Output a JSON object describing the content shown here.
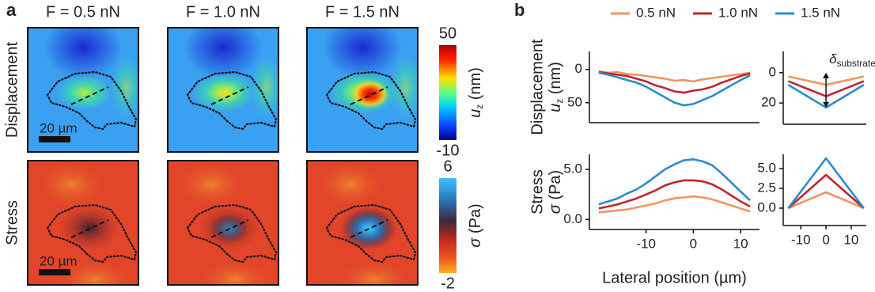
{
  "panel_labels": {
    "a": "a",
    "b": "b"
  },
  "panel_a": {
    "column_titles": [
      "F = 0.5 nN",
      "F = 1.0 nN",
      "F = 1.5 nN"
    ],
    "row_labels": [
      "Displacement",
      "Stress"
    ],
    "scale_bar": "20 µm",
    "colorbars": [
      {
        "ticks": [
          50,
          -10
        ],
        "range": [
          -10,
          50
        ],
        "symbol": "u",
        "sub": "z",
        "unit": " (nm)"
      },
      {
        "ticks": [
          6,
          -2
        ],
        "range": [
          -2,
          6
        ],
        "symbol": "σ",
        "unit": " (Pa)"
      }
    ]
  },
  "chart_data": [
    {
      "type": "line",
      "ylabel": "Displacement",
      "ylabel2": {
        "symbol": "u",
        "sub": "z",
        "unit": " (nm)"
      },
      "x": [
        -20,
        -18,
        -16,
        -14,
        -12,
        -10,
        -8,
        -6,
        -4,
        -2,
        0,
        2,
        4,
        6,
        8,
        10,
        12
      ],
      "xlim": [
        -22,
        14
      ],
      "ylim": [
        -27,
        80
      ],
      "y_inverted": true,
      "yticks": [
        0,
        50
      ],
      "series": [
        {
          "name": "0.5 nN",
          "color": "#f4945e",
          "values": [
            3,
            5,
            4,
            7,
            8,
            10,
            12,
            14,
            17,
            16,
            18,
            15,
            13,
            11,
            9,
            7,
            5
          ]
        },
        {
          "name": "1.0 nN",
          "color": "#c0262d",
          "values": [
            4,
            6,
            8,
            10,
            14,
            18,
            24,
            28,
            33,
            35,
            32,
            30,
            26,
            20,
            15,
            10,
            6
          ]
        },
        {
          "name": "1.5 nN",
          "color": "#2a8ccc",
          "values": [
            5,
            8,
            12,
            16,
            20,
            26,
            34,
            42,
            50,
            54,
            52,
            46,
            40,
            32,
            24,
            16,
            9
          ]
        }
      ]
    },
    {
      "type": "line",
      "x": [
        -15,
        0,
        15
      ],
      "xlim": [
        -17,
        16
      ],
      "ylim": [
        -14,
        34
      ],
      "y_inverted": true,
      "yticks": [
        0,
        20
      ],
      "annotation": {
        "symbol": "δ",
        "sub": "substrate"
      },
      "series": [
        {
          "color": "#f4945e",
          "values": [
            2.5,
            8,
            2.5
          ]
        },
        {
          "color": "#c0262d",
          "values": [
            5.6,
            15.6,
            5.6
          ]
        },
        {
          "color": "#2a8ccc",
          "values": [
            8,
            23,
            8
          ]
        }
      ]
    },
    {
      "type": "line",
      "ylabel": "Stress",
      "ylabel2": {
        "symbol": "σ",
        "unit": " (Pa)"
      },
      "xlabel": "Lateral position (µm)",
      "x": [
        -20,
        -18,
        -16,
        -14,
        -12,
        -10,
        -8,
        -6,
        -4,
        -2,
        0,
        2,
        4,
        6,
        8,
        10,
        12
      ],
      "xlim": [
        -22,
        14
      ],
      "ylim": [
        -1,
        6.5
      ],
      "xticks": [
        -10,
        0,
        10
      ],
      "yticks": [
        {
          "value": 0,
          "label": "0.0"
        },
        {
          "value": 5,
          "label": "5.0"
        }
      ],
      "series": [
        {
          "color": "#f4945e",
          "values": [
            0.7,
            0.8,
            0.9,
            1.0,
            1.2,
            1.4,
            1.6,
            1.9,
            2.1,
            2.2,
            2.3,
            2.2,
            2.0,
            1.7,
            1.4,
            1.1,
            0.8
          ]
        },
        {
          "color": "#c0262d",
          "values": [
            1.1,
            1.3,
            1.5,
            1.8,
            2.1,
            2.5,
            2.9,
            3.4,
            3.7,
            3.9,
            3.9,
            3.8,
            3.5,
            3.0,
            2.4,
            1.8,
            1.3
          ]
        },
        {
          "color": "#2a8ccc",
          "values": [
            1.5,
            1.8,
            2.1,
            2.6,
            3.0,
            3.6,
            4.3,
            5.0,
            5.5,
            5.9,
            6.0,
            5.8,
            5.4,
            4.6,
            3.7,
            2.8,
            1.9
          ]
        }
      ]
    },
    {
      "type": "line",
      "x": [
        -15,
        0,
        15
      ],
      "xlim": [
        -17,
        16
      ],
      "ylim": [
        -2.2,
        6.8
      ],
      "xticks": [
        -10,
        0,
        10
      ],
      "yticks": [
        {
          "value": 0,
          "label": "0.0"
        },
        {
          "value": 2.5,
          "label": "2.5"
        },
        {
          "value": 5,
          "label": "5.0"
        }
      ],
      "series": [
        {
          "color": "#f4945e",
          "values": [
            0,
            2.0,
            0
          ]
        },
        {
          "color": "#c0262d",
          "values": [
            0,
            4.2,
            0
          ]
        },
        {
          "color": "#2a8ccc",
          "values": [
            0,
            6.3,
            0
          ]
        }
      ]
    }
  ]
}
